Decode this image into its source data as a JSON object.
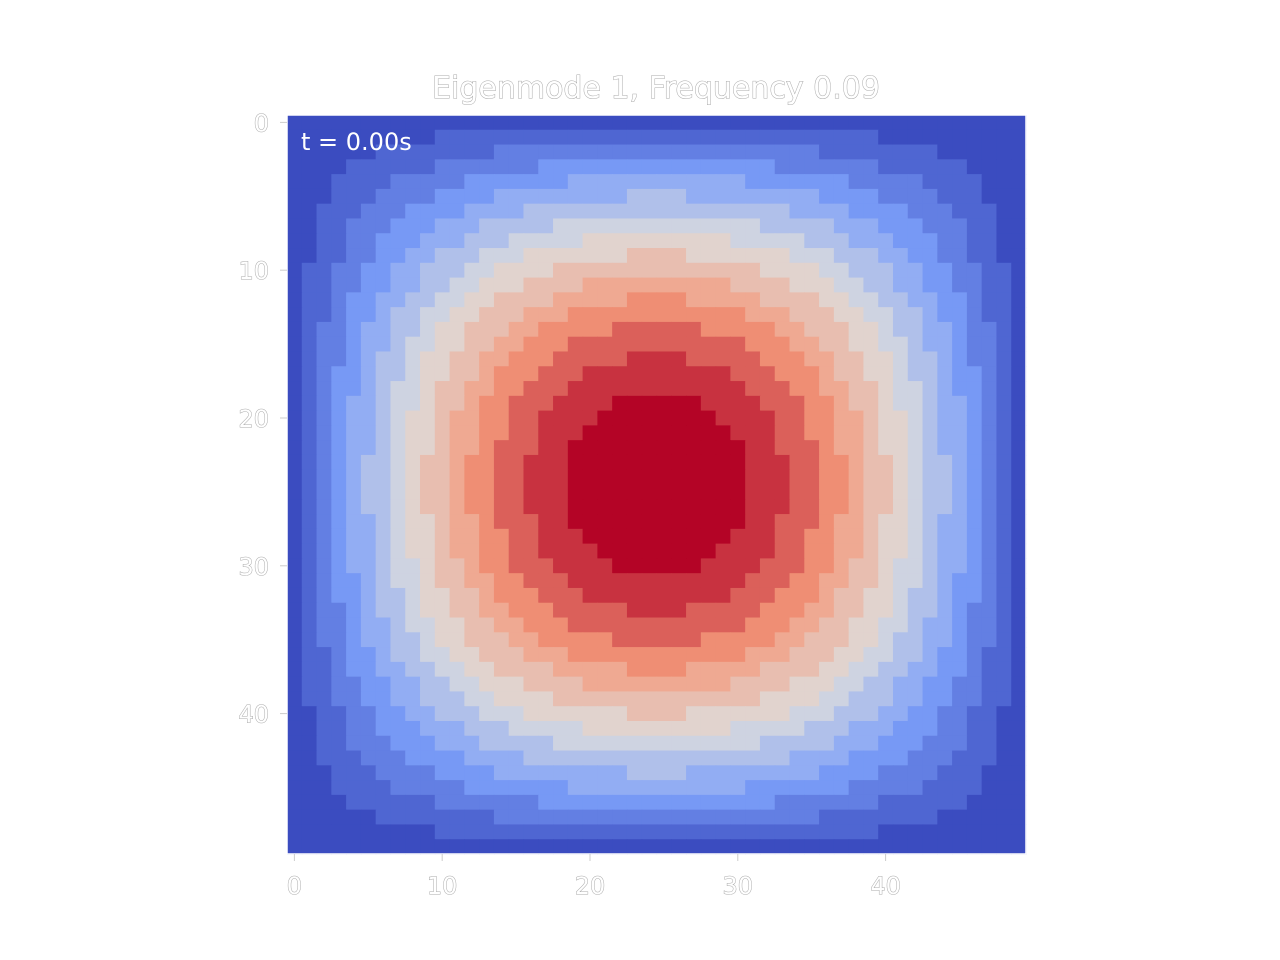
{
  "chart_data": {
    "type": "heatmap",
    "title": "Eigenmode 1, Frequency 0.09",
    "annotation": "t = 0.00s",
    "grid_size": [
      50,
      50
    ],
    "function": "sin(pi*(i+1)/51) * sin(pi*(j+1)/51)",
    "value_range": [
      0.0,
      1.0
    ],
    "colormap": "coolwarm",
    "color_levels": 14,
    "xlim": [
      -0.5,
      49.5
    ],
    "ylim": [
      49.5,
      -0.5
    ],
    "x_ticks": [
      0,
      10,
      20,
      30,
      40
    ],
    "y_ticks": [
      0,
      10,
      20,
      30,
      40
    ],
    "x_tick_labels": [
      "0",
      "10",
      "20",
      "30",
      "40"
    ],
    "y_tick_labels": [
      "0",
      "10",
      "20",
      "30",
      "40"
    ],
    "xlabel": "",
    "ylabel": "",
    "grid": false,
    "colors": {
      "low": "#3b4cc0",
      "mid": "#dddddd",
      "high": "#b40426",
      "axes_spine": "#ffffff",
      "tick_color": "#cccccc"
    }
  }
}
